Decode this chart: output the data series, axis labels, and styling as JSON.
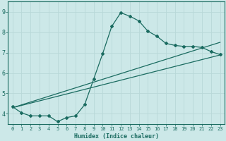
{
  "xlabel": "Humidex (Indice chaleur)",
  "xlim": [
    -0.5,
    23.5
  ],
  "ylim": [
    3.5,
    9.5
  ],
  "yticks": [
    4,
    5,
    6,
    7,
    8,
    9
  ],
  "xticks": [
    0,
    1,
    2,
    3,
    4,
    5,
    6,
    7,
    8,
    9,
    10,
    11,
    12,
    13,
    14,
    15,
    16,
    17,
    18,
    19,
    20,
    21,
    22,
    23
  ],
  "bg_color": "#cce8e8",
  "grid_color": "#b8d8d8",
  "line_color": "#1a6b60",
  "curve1_x": [
    0,
    1,
    2,
    3,
    4,
    5,
    6,
    7,
    8,
    9,
    10,
    11,
    12,
    13,
    14,
    15,
    16,
    17,
    18,
    19,
    20,
    21,
    22,
    23
  ],
  "curve1_y": [
    4.35,
    4.05,
    3.9,
    3.9,
    3.9,
    3.62,
    3.82,
    3.9,
    4.45,
    5.7,
    6.95,
    8.28,
    8.95,
    8.78,
    8.55,
    8.05,
    7.8,
    7.45,
    7.35,
    7.3,
    7.3,
    7.25,
    7.05,
    6.9
  ],
  "line2_x": [
    0,
    23
  ],
  "line2_y": [
    4.3,
    6.88
  ],
  "line3_x": [
    0,
    23
  ],
  "line3_y": [
    4.3,
    7.5
  ]
}
